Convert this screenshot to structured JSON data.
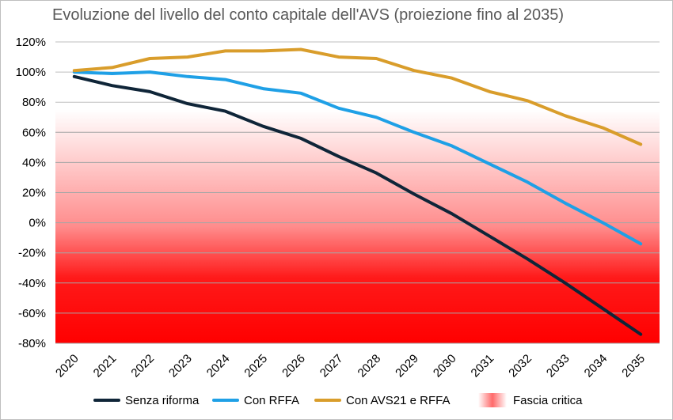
{
  "chart_data": {
    "type": "line",
    "title": "Evoluzione del livello del conto capitale dell'AVS (proiezione fino al 2035)",
    "xlabel": "",
    "ylabel": "",
    "categories": [
      "2020",
      "2021",
      "2022",
      "2023",
      "2024",
      "2025",
      "2026",
      "2027",
      "2028",
      "2029",
      "2030",
      "2031",
      "2032",
      "2033",
      "2034",
      "2035"
    ],
    "ylim": [
      -80,
      120
    ],
    "yticks": [
      120,
      100,
      80,
      60,
      40,
      20,
      0,
      -20,
      -40,
      -60,
      -80
    ],
    "ytick_labels": [
      "120%",
      "100%",
      "80%",
      "60%",
      "40%",
      "20%",
      "0%",
      "-20%",
      "-40%",
      "-60%",
      "-80%"
    ],
    "grid": true,
    "legend_position": "bottom",
    "series": [
      {
        "name": "Senza riforma",
        "color": "#0f2538",
        "values": [
          97,
          91,
          87,
          79,
          74,
          64,
          56,
          44,
          33,
          19,
          6,
          -9,
          -24,
          -40,
          -57,
          -74
        ]
      },
      {
        "name": "Con RFFA",
        "color": "#1fa0e6",
        "values": [
          100,
          99,
          100,
          97,
          95,
          89,
          86,
          76,
          70,
          60,
          51,
          39,
          27,
          13,
          0,
          -14
        ]
      },
      {
        "name": "Con AVS21 e RFFA",
        "color": "#d99d2b",
        "values": [
          101,
          103,
          109,
          110,
          114,
          114,
          115,
          110,
          109,
          101,
          96,
          87,
          81,
          71,
          63,
          52
        ]
      }
    ],
    "critical_band": {
      "name": "Fascia critica",
      "from": 75,
      "to": -80,
      "color": "#ff0000"
    }
  }
}
